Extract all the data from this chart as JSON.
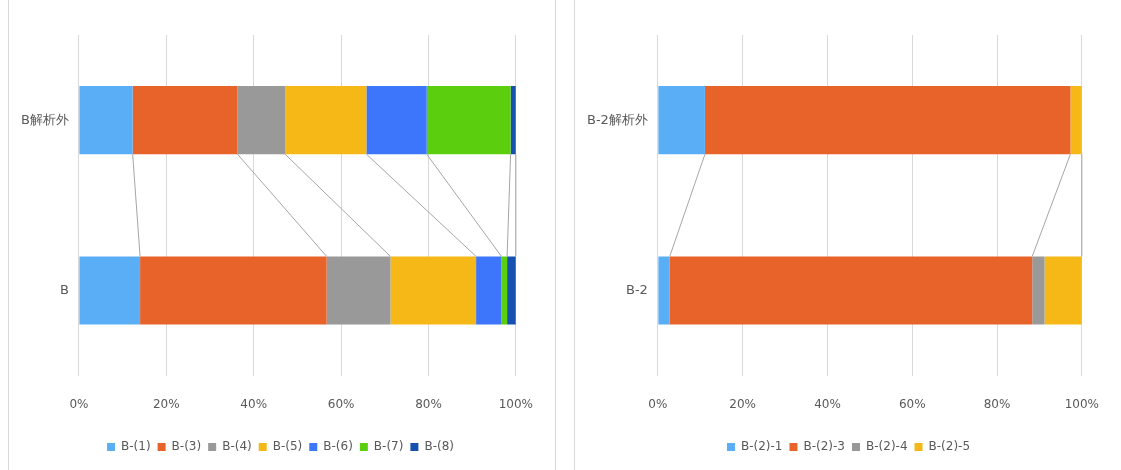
{
  "chart_data": [
    {
      "type": "bar",
      "orientation": "horizontal",
      "stacked": true,
      "categories": [
        "B解析外",
        "B"
      ],
      "series": [
        {
          "name": "B-(1)",
          "color": "#5aaef6",
          "values": [
            12.3,
            14.0
          ]
        },
        {
          "name": "B-(3)",
          "color": "#e8632a",
          "values": [
            24.0,
            42.7
          ]
        },
        {
          "name": "B-(4)",
          "color": "#999999",
          "values": [
            10.9,
            14.6
          ]
        },
        {
          "name": "B-(5)",
          "color": "#f5b816",
          "values": [
            18.6,
            19.6
          ]
        },
        {
          "name": "B-(6)",
          "color": "#3d75fb",
          "values": [
            13.8,
            5.8
          ]
        },
        {
          "name": "B-(7)",
          "color": "#5bcf0d",
          "values": [
            19.2,
            1.3
          ]
        },
        {
          "name": "B-(8)",
          "color": "#1651b1",
          "values": [
            1.2,
            2.0
          ]
        }
      ],
      "xlim": [
        0,
        100
      ],
      "xticks": [
        {
          "value": 0,
          "label": "0%"
        },
        {
          "value": 20,
          "label": "20%"
        },
        {
          "value": 40,
          "label": "40%"
        },
        {
          "value": 60,
          "label": "60%"
        },
        {
          "value": 80,
          "label": "80%"
        },
        {
          "value": 100,
          "label": "100%"
        }
      ],
      "grid": "x",
      "legend": "bottom"
    },
    {
      "type": "bar",
      "orientation": "horizontal",
      "stacked": true,
      "categories": [
        "B-2解析外",
        "B-2"
      ],
      "series": [
        {
          "name": "B-(2)-1",
          "color": "#5aaef6",
          "values": [
            11.1,
            2.8
          ]
        },
        {
          "name": "B-(2)-3",
          "color": "#e8632a",
          "values": [
            86.2,
            85.5
          ]
        },
        {
          "name": "B-(2)-4",
          "color": "#999999",
          "values": [
            0,
            2.9
          ]
        },
        {
          "name": "B-(2)-5",
          "color": "#f5b816",
          "values": [
            2.7,
            8.8
          ]
        }
      ],
      "xlim": [
        0,
        100
      ],
      "xticks": [
        {
          "value": 0,
          "label": "0%"
        },
        {
          "value": 20,
          "label": "20%"
        },
        {
          "value": 40,
          "label": "40%"
        },
        {
          "value": 60,
          "label": "60%"
        },
        {
          "value": 80,
          "label": "80%"
        },
        {
          "value": 100,
          "label": "100%"
        }
      ],
      "grid": "x",
      "legend": "bottom"
    }
  ]
}
